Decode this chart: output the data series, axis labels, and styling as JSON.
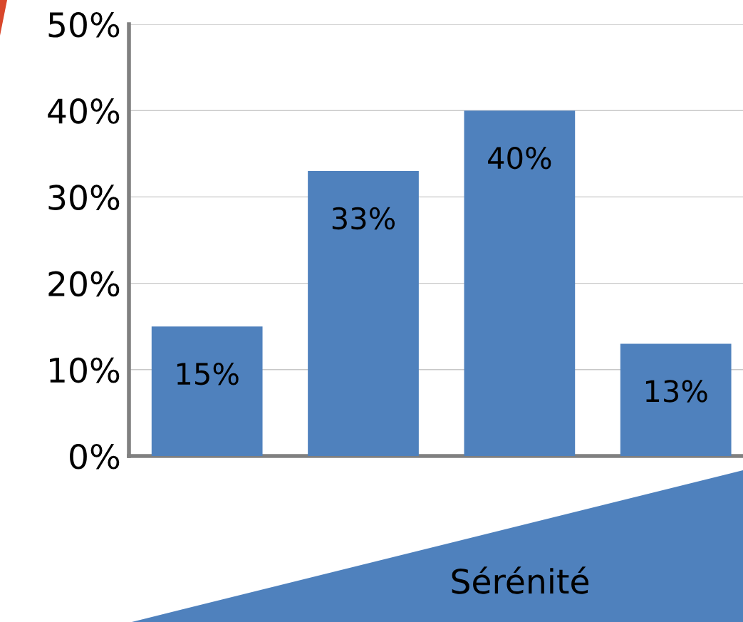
{
  "chart_data": {
    "type": "bar",
    "xlabel": "Sérénité",
    "categories": [
      null,
      null,
      null,
      null
    ],
    "values": [
      15,
      33,
      40,
      13
    ],
    "value_labels": [
      "15%",
      "33%",
      "40%",
      "13%"
    ],
    "color": "#4f81bd",
    "ylim": [
      0,
      50
    ],
    "yticks": [
      {
        "value": 0,
        "label": "0%"
      },
      {
        "value": 10,
        "label": "10%"
      },
      {
        "value": 20,
        "label": "20%"
      },
      {
        "value": 30,
        "label": "30%"
      },
      {
        "value": 40,
        "label": "40%"
      },
      {
        "value": 50,
        "label": "50%"
      }
    ],
    "grid": "y"
  }
}
